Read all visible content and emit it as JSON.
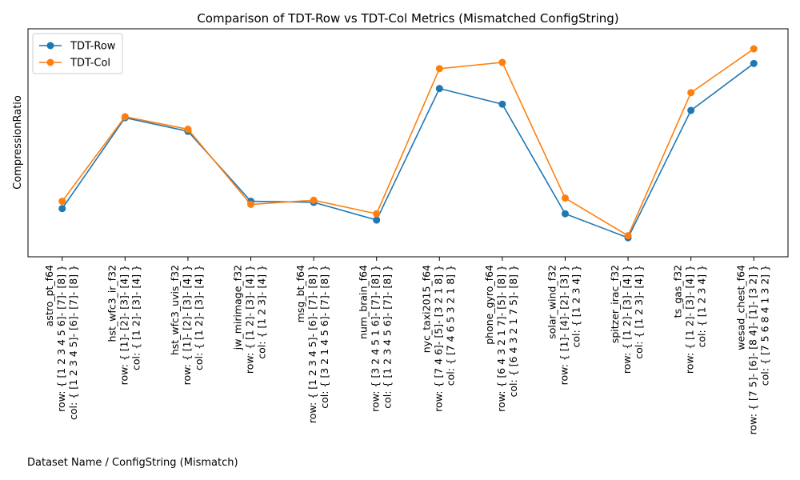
{
  "chart_data": {
    "type": "line",
    "title": "Comparison of TDT-Row vs TDT-Col Metrics (Mismatched ConfigString)",
    "xlabel": "Dataset Name / ConfigString (Mismatch)",
    "ylabel": "CompressionRatio",
    "ylim": [
      0,
      100
    ],
    "y_ticks_visible": false,
    "grid": false,
    "legend_position": "top-left",
    "categories": [
      {
        "name": "astro_pt_f64",
        "row": "row: { [1 2 3 4 5 6]- [7]- [8] }",
        "col": "col: { [1 2 3 4 5]- [6]- [7]- [8] }"
      },
      {
        "name": "hst_wfc3_ir_f32",
        "row": "row: { [1]- [2]- [3]- [4] }",
        "col": "col: { [1 2]- [3]- [4] }"
      },
      {
        "name": "hst_wfc3_uvis_f32",
        "row": "row: { [1]- [2]- [3]- [4] }",
        "col": "col: { [1 2]- [3]- [4] }"
      },
      {
        "name": "jw_mirimage_f32",
        "row": "row: { [1 2]- [3]- [4] }",
        "col": "col: { [1 2 3]- [4] }"
      },
      {
        "name": "msg_bt_f64",
        "row": "row: { [1 2 3 4 5]- [6]- [7]- [8] }",
        "col": "col: { [3 2 1 4 5 6]- [7]- [8] }"
      },
      {
        "name": "num_brain_f64",
        "row": "row: { [3 2 4 5 1 6]- [7]- [8] }",
        "col": "col: { [1 2 3 4 5 6]- [7]- [8] }"
      },
      {
        "name": "nyc_taxi2015_f64",
        "row": "row: { [7 4 6]- [5]- [3 2 1 8] }",
        "col": "col: { [7 4 6 5 3 2 1 8] }"
      },
      {
        "name": "phone_gyro_f64",
        "row": "row: { [6 4 3 2 1 7]- [5]- [8] }",
        "col": "col: { [6 4 3 2 1 7 5]- [8] }"
      },
      {
        "name": "solar_wind_f32",
        "row": "row: { [1]- [4]- [2]- [3] }",
        "col": "col: { [1 2 3 4] }"
      },
      {
        "name": "spitzer_irac_f32",
        "row": "row: { [1 2]- [3]- [4] }",
        "col": "col: { [1 2 3]- [4] }"
      },
      {
        "name": "ts_gas_f32",
        "row": "row: { [1 2]- [3]- [4] }",
        "col": "col: { [1 2 3 4] }"
      },
      {
        "name": "wesad_chest_f64",
        "row": "row: { [7 5]- [6]- [8 4]- [1]- [3 2] }",
        "col": "col: { [7 5 6 8 4 1 3 2] }"
      }
    ],
    "series": [
      {
        "name": "TDT-Row",
        "color": "#1f77b4",
        "marker": "circle",
        "values": [
          18.5,
          62.0,
          55.5,
          22.0,
          21.5,
          13.0,
          76.0,
          68.5,
          16.0,
          4.5,
          65.5,
          88.0
        ]
      },
      {
        "name": "TDT-Col",
        "color": "#ff7f0e",
        "marker": "circle",
        "values": [
          22.0,
          62.5,
          56.5,
          20.5,
          22.5,
          16.0,
          85.5,
          88.5,
          23.5,
          5.5,
          74.0,
          95.0
        ]
      }
    ]
  }
}
